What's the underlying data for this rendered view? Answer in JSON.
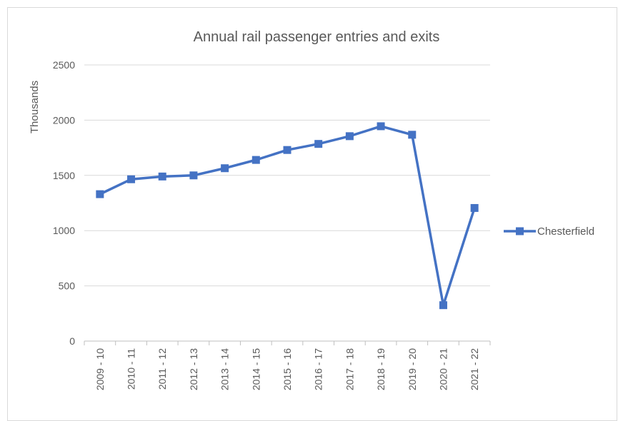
{
  "chart_data": {
    "type": "line",
    "title": "Annual rail passenger entries and exits",
    "ylabel": "Thousands",
    "xlabel": "",
    "ylim": [
      0,
      2500
    ],
    "yticks": [
      0,
      500,
      1000,
      1500,
      2000,
      2500
    ],
    "grid": true,
    "legend_position": "right",
    "categories": [
      "2009 - 10",
      "2010 - 11",
      "2011 - 12",
      "2012 - 13",
      "2013 - 14",
      "2014 - 15",
      "2015 - 16",
      "2016 - 17",
      "2017 - 18",
      "2018 - 19",
      "2019 - 20",
      "2020 - 21",
      "2021 - 22"
    ],
    "series": [
      {
        "name": "Chesterfield",
        "color": "#4472c4",
        "marker": "square",
        "values": [
          1330,
          1465,
          1490,
          1500,
          1565,
          1640,
          1730,
          1785,
          1855,
          1945,
          1868,
          325,
          1205
        ]
      }
    ]
  }
}
